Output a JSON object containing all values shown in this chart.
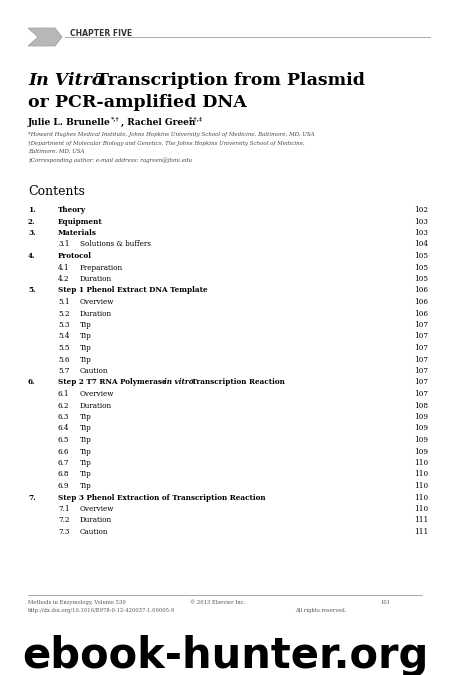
{
  "chapter_label": "CHAPTER FIVE",
  "title_italic": "In Vitro",
  "title_rest_line1": " Transcription from Plasmid",
  "title_line2": "or PCR-amplified DNA",
  "affil1": "*Howard Hughes Medical Institute, Johns Hopkins University School of Medicine, Baltimore, MD, USA",
  "affil2": "†Department of Molecular Biology and Genetics, The Johns Hopkins University School of Medicine,",
  "affil2b": "Baltimore, MD, USA",
  "affil3": "‡Corresponding author: e-mail address: ragreen@jhmi.edu",
  "contents_header": "Contents",
  "toc": [
    {
      "num": "1.",
      "text": "Theory",
      "page": "102",
      "level": 0
    },
    {
      "num": "2.",
      "text": "Equipment",
      "page": "103",
      "level": 0
    },
    {
      "num": "3.",
      "text": "Materials",
      "page": "103",
      "level": 0
    },
    {
      "num": "3.1",
      "text": "Solutions & buffers",
      "page": "104",
      "level": 1
    },
    {
      "num": "4.",
      "text": "Protocol",
      "page": "105",
      "level": 0
    },
    {
      "num": "4.1",
      "text": "Preparation",
      "page": "105",
      "level": 1
    },
    {
      "num": "4.2",
      "text": "Duration",
      "page": "105",
      "level": 1
    },
    {
      "num": "5.",
      "text": "Step 1 Phenol Extract DNA Template",
      "page": "106",
      "level": 0
    },
    {
      "num": "5.1",
      "text": "Overview",
      "page": "106",
      "level": 1
    },
    {
      "num": "5.2",
      "text": "Duration",
      "page": "106",
      "level": 1
    },
    {
      "num": "5.3",
      "text": "Tip",
      "page": "107",
      "level": 1
    },
    {
      "num": "5.4",
      "text": "Tip",
      "page": "107",
      "level": 1
    },
    {
      "num": "5.5",
      "text": "Tip",
      "page": "107",
      "level": 1
    },
    {
      "num": "5.6",
      "text": "Tip",
      "page": "107",
      "level": 1
    },
    {
      "num": "5.7",
      "text": "Caution",
      "page": "107",
      "level": 1
    },
    {
      "num": "6.",
      "text": "Step 2 T7 RNA Polymerase ",
      "text_italic": "in vitro",
      "text_rest": " Transcription Reaction",
      "page": "107",
      "level": 0
    },
    {
      "num": "6.1",
      "text": "Overview",
      "page": "107",
      "level": 1
    },
    {
      "num": "6.2",
      "text": "Duration",
      "page": "108",
      "level": 1
    },
    {
      "num": "6.3",
      "text": "Tip",
      "page": "109",
      "level": 1
    },
    {
      "num": "6.4",
      "text": "Tip",
      "page": "109",
      "level": 1
    },
    {
      "num": "6.5",
      "text": "Tip",
      "page": "109",
      "level": 1
    },
    {
      "num": "6.6",
      "text": "Tip",
      "page": "109",
      "level": 1
    },
    {
      "num": "6.7",
      "text": "Tip",
      "page": "110",
      "level": 1
    },
    {
      "num": "6.8",
      "text": "Tip",
      "page": "110",
      "level": 1
    },
    {
      "num": "6.9",
      "text": "Tip",
      "page": "110",
      "level": 1
    },
    {
      "num": "7.",
      "text": "Step 3 Phenol Extraction of Transcription Reaction",
      "page": "110",
      "level": 0
    },
    {
      "num": "7.1",
      "text": "Overview",
      "page": "110",
      "level": 1
    },
    {
      "num": "7.2",
      "text": "Duration",
      "page": "111",
      "level": 1
    },
    {
      "num": "7.3",
      "text": "Caution",
      "page": "111",
      "level": 1
    }
  ],
  "footer_left1": "Methods in Enzymology, Volume 530",
  "footer_mid1": "© 2013 Elsevier Inc.",
  "footer_right1": "101",
  "footer_left2": "http://dx.doi.org/10.1016/B978-0-12-420037-1.00005-9",
  "footer_right2": "All rights reserved.",
  "watermark": "ebook-hunter.org",
  "bg_color": "#ffffff",
  "text_color": "#000000",
  "gray_color": "#555555"
}
